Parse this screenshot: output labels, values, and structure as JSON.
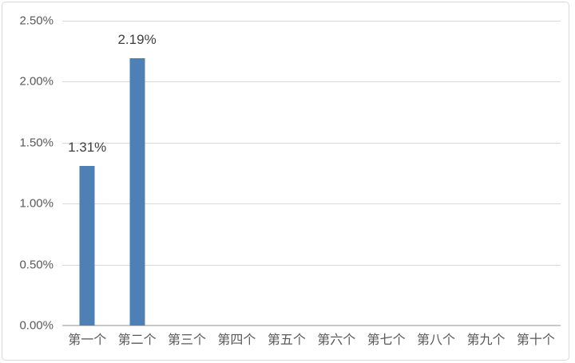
{
  "chart_data": {
    "type": "bar",
    "categories": [
      "第一个",
      "第二个",
      "第三个",
      "第四个",
      "第五个",
      "第六个",
      "第七个",
      "第八个",
      "第九个",
      "第十个"
    ],
    "values": [
      1.31,
      2.19,
      0,
      0,
      0,
      0,
      0,
      0,
      0,
      0
    ],
    "data_labels": [
      "1.31%",
      "2.19%",
      "",
      "",
      "",
      "",
      "",
      "",
      "",
      ""
    ],
    "title": "",
    "xlabel": "",
    "ylabel": "",
    "ylim": [
      0,
      2.5
    ],
    "ytick_values": [
      0,
      0.5,
      1.0,
      1.5,
      2.0,
      2.5
    ],
    "ytick_labels": [
      "0.00%",
      "0.50%",
      "1.00%",
      "1.50%",
      "2.00%",
      "2.50%"
    ],
    "grid": "horizontal",
    "legend": "none",
    "colors": {
      "bar_fill": "#4e7fb5",
      "gridline": "#d9d9d9",
      "axis_line": "#c9c9c9",
      "tick_label_text": "#595959",
      "data_label_text": "#3f3f3f",
      "frame_border": "#d9d9d9",
      "background": "#ffffff"
    }
  }
}
